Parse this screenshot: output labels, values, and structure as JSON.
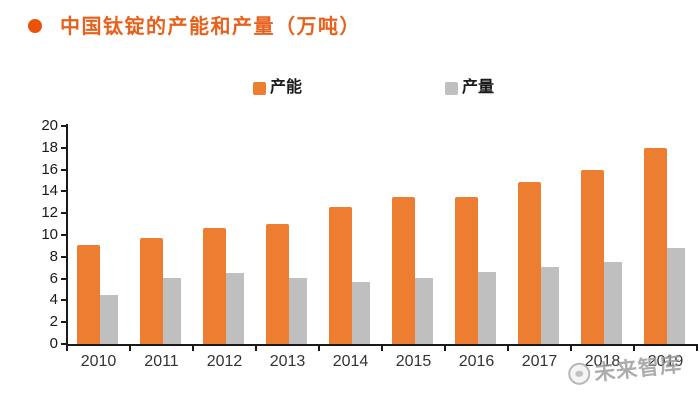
{
  "header": {
    "title": "中国钛锭的产能和产量（万吨）",
    "title_color": "#e8611c",
    "bullet_color": "#ed5308"
  },
  "chart_data": {
    "type": "bar",
    "title": "中国钛锭的产能和产量（万吨）",
    "categories": [
      "2010",
      "2011",
      "2012",
      "2013",
      "2014",
      "2015",
      "2016",
      "2017",
      "2018",
      "2019"
    ],
    "series": [
      {
        "name": "产能",
        "color": "#ed7d31",
        "values": [
          9.1,
          9.7,
          10.6,
          11.0,
          12.6,
          13.5,
          13.5,
          14.9,
          16.0,
          18.0
        ]
      },
      {
        "name": "产量",
        "color": "#bfbfbf",
        "values": [
          4.5,
          6.1,
          6.5,
          6.1,
          5.7,
          6.1,
          6.6,
          7.1,
          7.5,
          8.8
        ]
      }
    ],
    "ylim": [
      0,
      20
    ],
    "ytick_step": 2,
    "ytick_labels": [
      "0",
      "2",
      "4",
      "6",
      "8",
      "10",
      "12",
      "14",
      "16",
      "18",
      "20"
    ],
    "grid": false,
    "legend_position": "top-center",
    "axis_color": "#1a1a1a"
  },
  "watermark": {
    "text": "未来智库",
    "color": "#9b9b9b"
  }
}
